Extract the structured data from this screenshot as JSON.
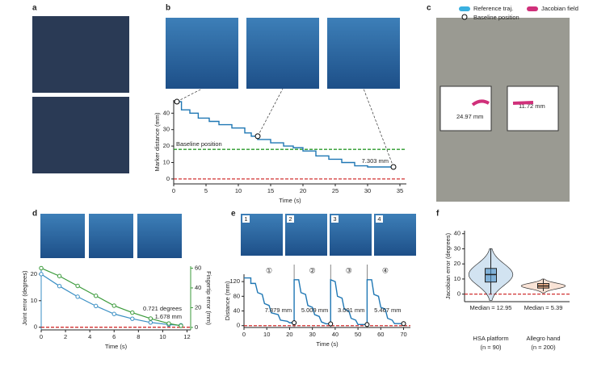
{
  "panel_labels": [
    "a",
    "b",
    "c",
    "d",
    "e",
    "f"
  ],
  "panel_c": {
    "legend": [
      "Reference traj.",
      "Jacobian field",
      "Baseline position"
    ],
    "measurements": [
      "24.97 mm",
      "11.72 mm"
    ]
  },
  "chart_data": [
    {
      "type": "line",
      "xlabel": "Time (s)",
      "ylabel": "Marker distance (mm)",
      "color": "#1f77b4",
      "x": [
        0.5,
        1.2,
        1.2,
        2.5,
        2.5,
        3.8,
        3.8,
        5.5,
        5.5,
        7,
        7,
        9,
        9,
        11,
        11,
        12,
        12,
        13,
        13,
        15,
        15,
        17,
        17,
        18.5,
        18.5,
        20,
        20,
        22,
        22,
        24,
        24,
        26,
        26,
        28,
        28,
        30,
        30,
        34
      ],
      "values": [
        47,
        47,
        42,
        42,
        40,
        40,
        37,
        37,
        35,
        35,
        33,
        33,
        31,
        31,
        28,
        28,
        26,
        26,
        24,
        24,
        22,
        22,
        20,
        20,
        19,
        19,
        17,
        17,
        14,
        14,
        12,
        12,
        10,
        10,
        8,
        8,
        7.3,
        7.3
      ],
      "xlim": [
        0,
        36
      ],
      "ylim": [
        -3,
        48
      ],
      "xticks": [
        0,
        5,
        10,
        15,
        20,
        25,
        30,
        35
      ],
      "yticks": [
        0,
        10,
        20,
        30,
        40
      ],
      "reference_lines": [
        {
          "value": 18,
          "color": "#2a9a2a",
          "label": "Baseline position"
        },
        {
          "value": 0,
          "color": "#d03030"
        }
      ],
      "annotations": [
        "7.303 mm"
      ]
    },
    {
      "type": "line",
      "xlabel": "Time (s)",
      "ylabel": "Joint error (degrees)",
      "y2label": "Fingertip error (mm)",
      "x": [
        0,
        1.5,
        3,
        4.5,
        6,
        7.5,
        9,
        10.5,
        11.5
      ],
      "series": [
        {
          "color": "#3a8fc4",
          "values": [
            20,
            15.5,
            11.5,
            8,
            5,
            3.2,
            1.8,
            1,
            0.721
          ]
        },
        {
          "color": "#3a9a3a",
          "axis": "y2",
          "values": [
            60,
            52,
            42,
            32,
            22,
            15,
            9,
            4,
            1.678
          ]
        }
      ],
      "xlim": [
        0,
        12.3
      ],
      "ylim": [
        -1,
        23
      ],
      "y2lim": [
        -2.5,
        62
      ],
      "xticks": [
        0,
        2,
        4,
        6,
        8,
        10,
        12
      ],
      "yticks": [
        0,
        10,
        20
      ],
      "y2ticks": [
        0,
        20,
        40,
        60
      ],
      "reference_lines": [
        {
          "value": 0,
          "color": "#d03030"
        }
      ],
      "annotations": [
        "0.721 degrees",
        "1.678 mm"
      ]
    },
    {
      "type": "line",
      "xlabel": "Time (s)",
      "ylabel": "Distance (mm)",
      "color": "#1f77b4",
      "x": [
        0,
        3,
        3,
        5,
        6,
        8,
        9,
        11,
        12,
        15,
        16,
        19,
        20,
        22,
        22,
        24,
        25,
        27,
        28,
        30,
        31,
        33,
        34,
        36,
        38,
        38,
        40,
        41,
        43,
        44,
        46,
        47,
        49,
        50,
        54,
        54,
        56,
        57,
        59,
        60,
        62,
        63,
        65,
        66,
        70
      ],
      "values": [
        130,
        130,
        115,
        115,
        90,
        85,
        60,
        55,
        35,
        30,
        15,
        12,
        7.9,
        7.9,
        125,
        125,
        90,
        85,
        55,
        50,
        30,
        25,
        10,
        5,
        5,
        125,
        120,
        80,
        75,
        45,
        40,
        20,
        15,
        3,
        3,
        125,
        125,
        85,
        80,
        50,
        45,
        20,
        15,
        5.5,
        5.5
      ],
      "xlim": [
        0,
        73
      ],
      "ylim": [
        -5,
        140
      ],
      "xticks": [
        0,
        10,
        20,
        30,
        40,
        50,
        60,
        70
      ],
      "yticks": [
        0,
        40,
        80,
        120
      ],
      "dividers": [
        22,
        38,
        54
      ],
      "reference_lines": [
        {
          "value": 0,
          "color": "#d03030"
        }
      ],
      "segment_labels": [
        "①",
        "②",
        "③",
        "④"
      ],
      "photo_labels": [
        "1",
        "2",
        "3",
        "4"
      ],
      "annotations": [
        "7.879 mm",
        "5.009 mm",
        "3.001 mm",
        "5.467 mm"
      ]
    },
    {
      "type": "box",
      "ylabel": "Jacobian error (degrees)",
      "categories": [
        "HSA platform",
        "Allegro hand"
      ],
      "group_sizes": [
        "(n = 90)",
        "(n = 200)"
      ],
      "colors": [
        "#4a90c8",
        "#e8905a"
      ],
      "whisker_low": [
        0,
        2
      ],
      "q1": [
        8,
        4
      ],
      "medians": [
        12.95,
        5.39
      ],
      "q3": [
        17,
        7
      ],
      "whisker_high": [
        30,
        10
      ],
      "median_labels": [
        "Median = 12.95",
        "Median = 5.39"
      ],
      "ylim": [
        -5,
        42
      ],
      "yticks": [
        0,
        10,
        20,
        30,
        40
      ],
      "reference_lines": [
        {
          "value": 0,
          "color": "#d03030"
        }
      ]
    }
  ]
}
